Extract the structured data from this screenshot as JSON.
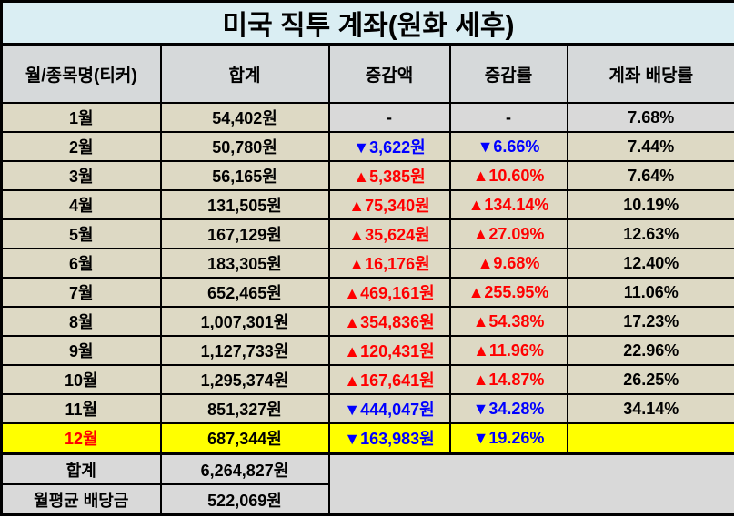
{
  "chart_data": {
    "type": "table",
    "title": "미국 직투 계좌(원화 세후)",
    "columns": [
      "월/종목명(티커)",
      "합계",
      "증감액",
      "증감률",
      "계좌 배당률"
    ],
    "rows": [
      {
        "month": "1월",
        "total": "54,402원",
        "change_amount": "-",
        "amount_dir": "flat",
        "change_rate": "-",
        "rate_dir": "flat",
        "dividend_rate": "7.68%",
        "variant": "first"
      },
      {
        "month": "2월",
        "total": "50,780원",
        "change_amount": "▼3,622원",
        "amount_dir": "down",
        "change_rate": "▼6.66%",
        "rate_dir": "down",
        "dividend_rate": "7.44%",
        "variant": "normal"
      },
      {
        "month": "3월",
        "total": "56,165원",
        "change_amount": "▲5,385원",
        "amount_dir": "up",
        "change_rate": "▲10.60%",
        "rate_dir": "up",
        "dividend_rate": "7.64%",
        "variant": "normal"
      },
      {
        "month": "4월",
        "total": "131,505원",
        "change_amount": "▲75,340원",
        "amount_dir": "up",
        "change_rate": "▲134.14%",
        "rate_dir": "up",
        "dividend_rate": "10.19%",
        "variant": "normal"
      },
      {
        "month": "5월",
        "total": "167,129원",
        "change_amount": "▲35,624원",
        "amount_dir": "up",
        "change_rate": "▲27.09%",
        "rate_dir": "up",
        "dividend_rate": "12.63%",
        "variant": "normal"
      },
      {
        "month": "6월",
        "total": "183,305원",
        "change_amount": "▲16,176원",
        "amount_dir": "up",
        "change_rate": "▲9.68%",
        "rate_dir": "up",
        "dividend_rate": "12.40%",
        "variant": "normal"
      },
      {
        "month": "7월",
        "total": "652,465원",
        "change_amount": "▲469,161원",
        "amount_dir": "up",
        "change_rate": "▲255.95%",
        "rate_dir": "up",
        "dividend_rate": "11.06%",
        "variant": "normal"
      },
      {
        "month": "8월",
        "total": "1,007,301원",
        "change_amount": "▲354,836원",
        "amount_dir": "up",
        "change_rate": "▲54.38%",
        "rate_dir": "up",
        "dividend_rate": "17.23%",
        "variant": "normal"
      },
      {
        "month": "9월",
        "total": "1,127,733원",
        "change_amount": "▲120,431원",
        "amount_dir": "up",
        "change_rate": "▲11.96%",
        "rate_dir": "up",
        "dividend_rate": "22.96%",
        "variant": "normal"
      },
      {
        "month": "10월",
        "total": "1,295,374원",
        "change_amount": "▲167,641원",
        "amount_dir": "up",
        "change_rate": "▲14.87%",
        "rate_dir": "up",
        "dividend_rate": "26.25%",
        "variant": "normal"
      },
      {
        "month": "11월",
        "total": "851,327원",
        "change_amount": "▼444,047원",
        "amount_dir": "down",
        "change_rate": "▼34.28%",
        "rate_dir": "down",
        "dividend_rate": "34.14%",
        "variant": "normal"
      },
      {
        "month": "12월",
        "total": "687,344원",
        "change_amount": "▼163,983원",
        "amount_dir": "down",
        "change_rate": "▼19.26%",
        "rate_dir": "down",
        "dividend_rate": "",
        "variant": "highlight"
      }
    ],
    "summary_rows": [
      {
        "label": "합계",
        "value": "6,264,827원"
      },
      {
        "label": "월평균 배당금",
        "value": "522,069원"
      }
    ]
  },
  "colors": {
    "title_bg": "#daeef3",
    "header_bg": "#d6d9da",
    "row_bg": "#ddd9c4",
    "gray_bg": "#d9d9d9",
    "highlight_bg": "#ffff00",
    "up": "#ff0000",
    "down": "#0000ff",
    "border": "#000000"
  }
}
